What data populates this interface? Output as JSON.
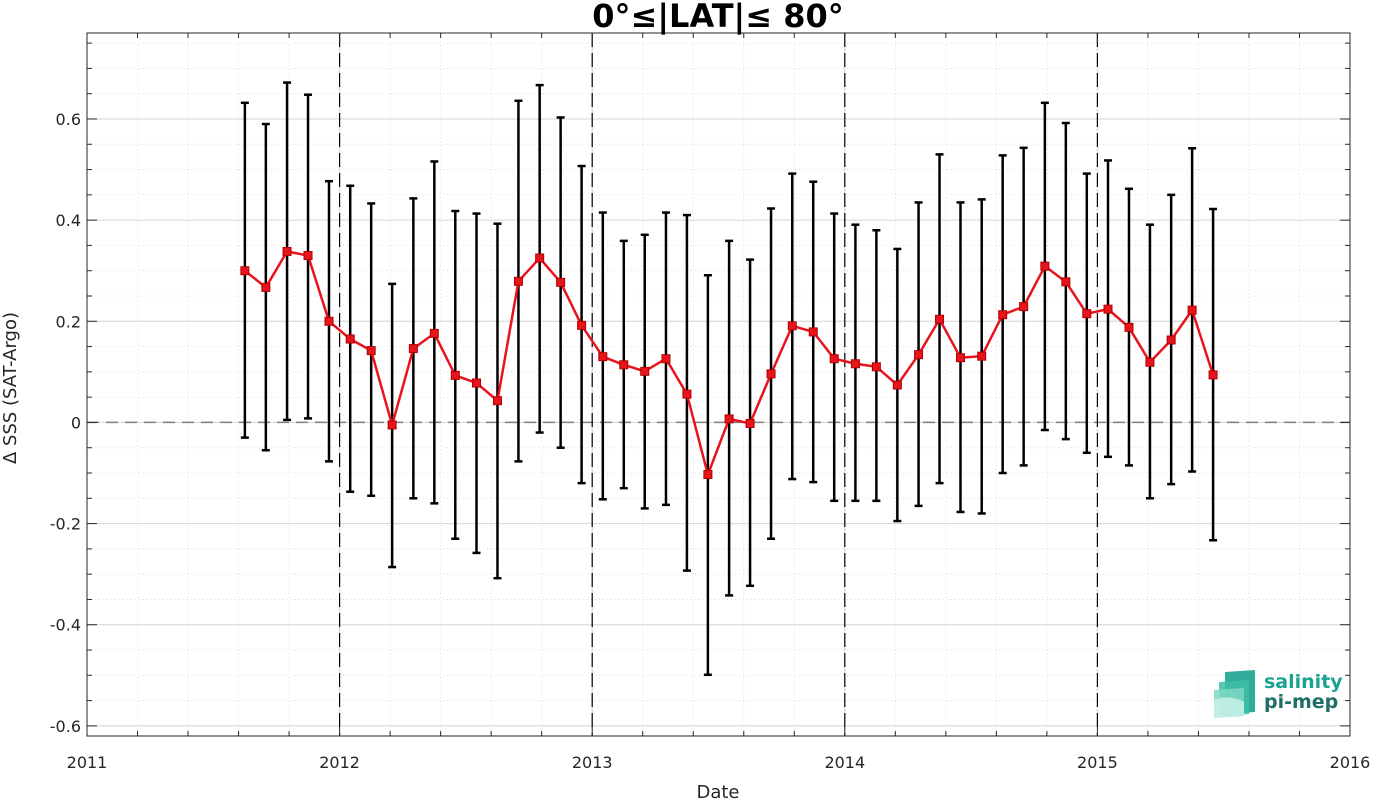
{
  "chart_data": {
    "type": "line",
    "title": "0°≤|LAT|≤ 80°",
    "xlabel": "Date",
    "ylabel": "Δ SSS (SAT-Argo)",
    "xlim": [
      2011,
      2016
    ],
    "ylim": [
      -0.62,
      0.77
    ],
    "x_ticks": [
      2011,
      2012,
      2013,
      2014,
      2015,
      2016
    ],
    "x_tick_labels": [
      "2011",
      "2012",
      "2013",
      "2014",
      "2015",
      "2016"
    ],
    "y_ticks": [
      -0.6,
      -0.4,
      -0.2,
      0,
      0.2,
      0.4,
      0.6
    ],
    "y_tick_labels": [
      "-0.6",
      "-0.4",
      "-0.2",
      "0",
      "0.2",
      "0.4",
      "0.6"
    ],
    "grid": true,
    "year_boundaries": [
      2012,
      2013,
      2014,
      2015
    ],
    "zero_line": 0,
    "colors": {
      "series": "#e8141c",
      "errorbar": "#000000",
      "zero_line": "#808080",
      "grid": "#d6d6d6",
      "logo": "#1aa390"
    },
    "series": [
      {
        "x": [
          2011.625,
          2011.708,
          2011.792,
          2011.875,
          2011.958,
          2012.042,
          2012.125,
          2012.208,
          2012.292,
          2012.375,
          2012.458,
          2012.542,
          2012.625,
          2012.708,
          2012.792,
          2012.875,
          2012.958,
          2013.042,
          2013.125,
          2013.208,
          2013.292,
          2013.375,
          2013.458,
          2013.542,
          2013.625,
          2013.708,
          2013.792,
          2013.875,
          2013.958,
          2014.042,
          2014.125,
          2014.208,
          2014.292,
          2014.375,
          2014.458,
          2014.542,
          2014.625,
          2014.708,
          2014.792,
          2014.875,
          2014.958,
          2015.042,
          2015.125,
          2015.208,
          2015.292,
          2015.375,
          2015.458
        ],
        "y": [
          0.3,
          0.267,
          0.338,
          0.33,
          0.2,
          0.165,
          0.142,
          -0.005,
          0.146,
          0.176,
          0.093,
          0.078,
          0.043,
          0.279,
          0.325,
          0.277,
          0.192,
          0.13,
          0.114,
          0.101,
          0.126,
          0.056,
          -0.103,
          0.007,
          -0.002,
          0.096,
          0.191,
          0.179,
          0.126,
          0.116,
          0.11,
          0.074,
          0.134,
          0.204,
          0.128,
          0.131,
          0.213,
          0.229,
          0.309,
          0.278,
          0.215,
          0.224,
          0.188,
          0.119,
          0.163,
          0.222,
          0.094
        ],
        "err_low": [
          -0.03,
          -0.055,
          0.005,
          0.008,
          -0.077,
          -0.137,
          -0.145,
          -0.286,
          -0.15,
          -0.16,
          -0.23,
          -0.258,
          -0.308,
          -0.077,
          -0.02,
          -0.05,
          -0.12,
          -0.152,
          -0.13,
          -0.17,
          -0.163,
          -0.293,
          -0.499,
          -0.342,
          -0.323,
          -0.23,
          -0.112,
          -0.118,
          -0.155,
          -0.155,
          -0.155,
          -0.195,
          -0.165,
          -0.12,
          -0.177,
          -0.18,
          -0.1,
          -0.085,
          -0.015,
          -0.033,
          -0.06,
          -0.068,
          -0.085,
          -0.15,
          -0.122,
          -0.097,
          -0.233
        ],
        "err_high": [
          0.632,
          0.59,
          0.672,
          0.648,
          0.477,
          0.468,
          0.433,
          0.274,
          0.443,
          0.516,
          0.418,
          0.413,
          0.393,
          0.636,
          0.667,
          0.603,
          0.507,
          0.415,
          0.359,
          0.371,
          0.415,
          0.41,
          0.291,
          0.359,
          0.322,
          0.423,
          0.492,
          0.476,
          0.413,
          0.391,
          0.38,
          0.343,
          0.435,
          0.53,
          0.435,
          0.441,
          0.528,
          0.543,
          0.632,
          0.592,
          0.492,
          0.518,
          0.462,
          0.391,
          0.45,
          0.542,
          0.422
        ]
      }
    ]
  },
  "logo": {
    "line1": "salinity",
    "line2": "pi-mep"
  }
}
